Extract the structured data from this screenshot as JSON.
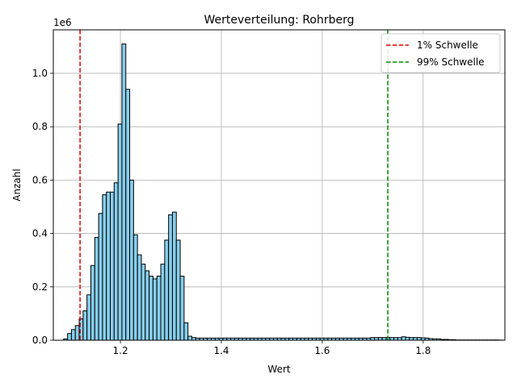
{
  "chart_data": {
    "type": "bar",
    "title": "Werteverteilung: Rohrberg",
    "xlabel": "Wert",
    "ylabel": "Anzahl",
    "y_scale_label": "1e6",
    "xlim": [
      1.067,
      1.962
    ],
    "ylim": [
      0,
      1163000
    ],
    "grid": true,
    "legend_position": "upper right",
    "bar_color": "#87ceeb",
    "bar_edge_color": "#000000",
    "x_ticks": [
      1.2,
      1.4,
      1.6,
      1.8
    ],
    "x_tick_labels": [
      "1.2",
      "1.4",
      "1.6",
      "1.8"
    ],
    "y_ticks": [
      0,
      200000,
      400000,
      600000,
      800000,
      1000000
    ],
    "y_tick_labels": [
      "0.0",
      "0.2",
      "0.4",
      "0.6",
      "0.8",
      "1.0"
    ],
    "bins": {
      "start": 1.0875,
      "width": 0.0077,
      "counts": [
        5000,
        25000,
        40000,
        55000,
        80000,
        110000,
        170000,
        280000,
        385000,
        475000,
        545000,
        555000,
        555000,
        590000,
        810000,
        1110000,
        940000,
        600000,
        395000,
        320000,
        285000,
        260000,
        240000,
        230000,
        240000,
        285000,
        375000,
        470000,
        480000,
        375000,
        240000,
        65000,
        15000,
        10000,
        8000,
        8000,
        8000,
        8000,
        8000,
        8000,
        8000,
        8000,
        8000,
        8000,
        8000,
        8000,
        8000,
        8000,
        8000,
        8000,
        8000,
        8000,
        8000,
        8000,
        8000,
        8000,
        8000,
        8000,
        8000,
        8000,
        8000,
        8000,
        8000,
        8000,
        8000,
        8000,
        8000,
        8000,
        8000,
        8000,
        8000,
        8000,
        8000,
        8000,
        8000,
        8000,
        8000,
        8000,
        8000,
        10000,
        10000,
        10000,
        10000,
        10000,
        10000,
        10000,
        10000,
        13000,
        11000,
        10000,
        10000,
        10000,
        9000,
        8000,
        6000,
        5000,
        5000,
        3000,
        3000,
        2000,
        2000,
        1000,
        1000,
        1000,
        1000,
        1000,
        1000,
        1000,
        1000,
        1000,
        1000,
        1000,
        500
      ]
    },
    "reference_lines": [
      {
        "name": "1% Schwelle",
        "x": 1.12,
        "color": "#dd0000"
      },
      {
        "name": "99% Schwelle",
        "x": 1.73,
        "color": "#008800"
      }
    ]
  }
}
